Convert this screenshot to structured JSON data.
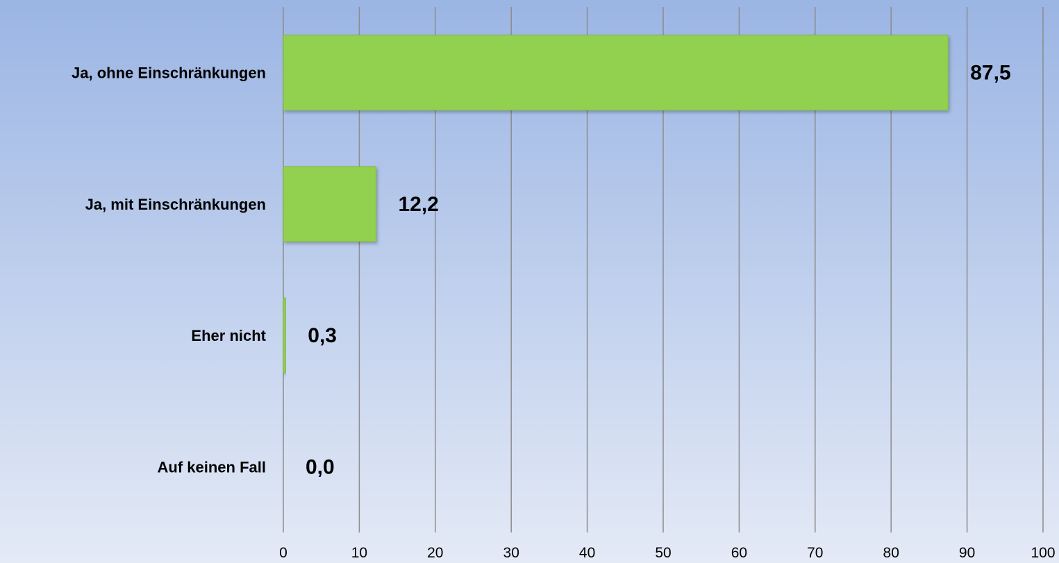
{
  "chart_data": {
    "type": "bar",
    "orientation": "horizontal",
    "categories": [
      "Ja, ohne Einschränkungen",
      "Ja, mit Einschränkungen",
      "Eher nicht",
      "Auf keinen Fall"
    ],
    "values": [
      87.5,
      12.2,
      0.3,
      0.0
    ],
    "value_labels": [
      "87,5",
      "12,2",
      "0,3",
      "0,0"
    ],
    "xlim": [
      0,
      100
    ],
    "x_ticks": [
      0,
      10,
      20,
      30,
      40,
      50,
      60,
      70,
      80,
      90,
      100
    ],
    "x_tick_labels": [
      "0",
      "10",
      "20",
      "30",
      "40",
      "50",
      "60",
      "70",
      "80",
      "90",
      "100"
    ],
    "title": "",
    "xlabel": "",
    "ylabel": "",
    "grid": "vertical",
    "legend": "none",
    "colors": {
      "bar": "#92d050",
      "bar_edge": "#7fba3c",
      "gridline": "#8c8c8c",
      "text": "#000000"
    }
  }
}
